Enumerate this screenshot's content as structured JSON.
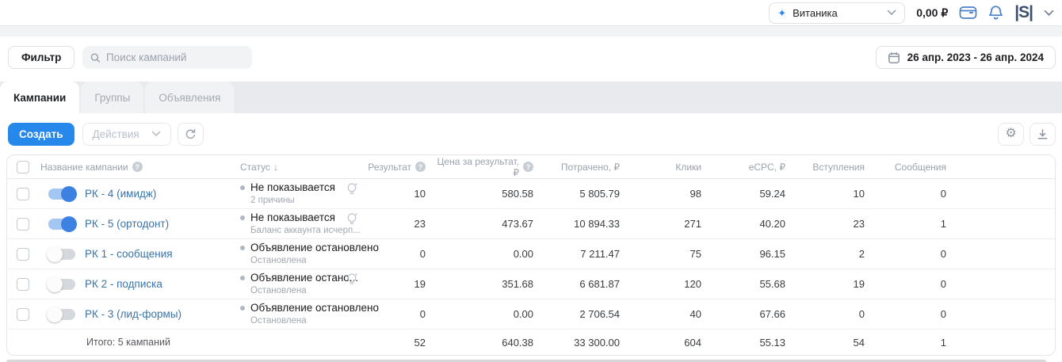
{
  "icons": {
    "sparkle": "✦",
    "sort_desc": "↓",
    "help": "?",
    "gear": "⚙"
  },
  "topbar": {
    "account_name": "Витаника",
    "balance": "0,00 ₽",
    "logo": "|S|"
  },
  "filter_bar": {
    "filter_button": "Фильтр",
    "search_placeholder": "Поиск кампаний",
    "date_range": "26 апр. 2023 - 26 апр. 2024"
  },
  "tabs": [
    {
      "label": "Кампании",
      "active": true
    },
    {
      "label": "Группы",
      "active": false
    },
    {
      "label": "Объявления",
      "active": false
    }
  ],
  "actions": {
    "create": "Создать",
    "actions_dropdown": "Действия"
  },
  "table": {
    "columns": {
      "name": "Название кампании",
      "status": "Статус",
      "result": "Результат",
      "cost_per_result": "Цена за результат, ₽",
      "spent": "Потрачено, ₽",
      "clicks": "Клики",
      "ecpc": "eCPC, ₽",
      "joins": "Вступления",
      "messages": "Сообщения"
    },
    "rows": [
      {
        "name": "РК - 4 (имидж)",
        "enabled": true,
        "status": "Не показывается",
        "note": "2 причины",
        "hint_icon": true,
        "result": "10",
        "cost_per_result": "580.58",
        "spent": "5 805.79",
        "clicks": "98",
        "ecpc": "59.24",
        "joins": "10",
        "messages": "0"
      },
      {
        "name": "РК - 5 (ортодонт)",
        "enabled": true,
        "status": "Не показывается",
        "note": "Баланс аккаунта исчерп...",
        "hint_icon": true,
        "result": "23",
        "cost_per_result": "473.67",
        "spent": "10 894.33",
        "clicks": "271",
        "ecpc": "40.20",
        "joins": "23",
        "messages": "1"
      },
      {
        "name": "РК 1 - сообщения",
        "enabled": false,
        "status": "Объявление остановлено",
        "note": "Остановлена",
        "hint_icon": false,
        "result": "0",
        "cost_per_result": "0.00",
        "spent": "7 211.47",
        "clicks": "75",
        "ecpc": "96.15",
        "joins": "2",
        "messages": "0"
      },
      {
        "name": "РК 2 - подписка",
        "enabled": false,
        "status": "Объявление остано...",
        "note": "Остановлена",
        "hint_icon": true,
        "result": "19",
        "cost_per_result": "351.68",
        "spent": "6 681.87",
        "clicks": "120",
        "ecpc": "55.68",
        "joins": "19",
        "messages": "0"
      },
      {
        "name": "РК - 3 (лид-формы)",
        "enabled": false,
        "status": "Объявление остановлено",
        "note": "Остановлена",
        "hint_icon": false,
        "result": "0",
        "cost_per_result": "0.00",
        "spent": "2 706.54",
        "clicks": "40",
        "ecpc": "67.66",
        "joins": "0",
        "messages": "0"
      }
    ],
    "totals": {
      "label": "Итого: 5 кампаний",
      "result": "52",
      "cost_per_result": "640.38",
      "spent": "33 300.00",
      "clicks": "604",
      "ecpc": "55.13",
      "joins": "54",
      "messages": "1"
    }
  }
}
